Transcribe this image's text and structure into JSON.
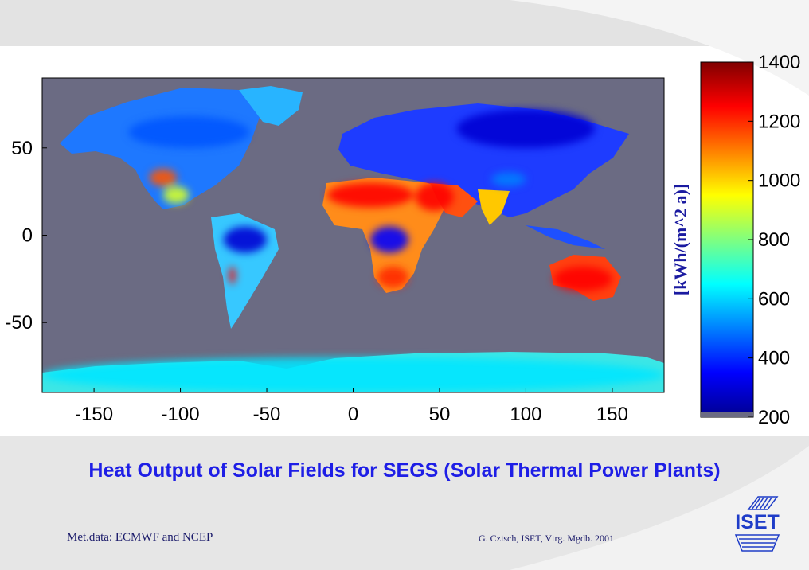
{
  "slide": {
    "title": "Heat Output of Solar Fields for SEGS (Solar Thermal Power Plants)",
    "footer_left": "Met.data: ECMWF and NCEP",
    "footer_right": "G. Czisch, ISET, Vtrg. Mgdb. 2001",
    "logo_text": "ISET"
  },
  "colors": {
    "title": "#1e1ee6",
    "ocean": "#6b6b83",
    "colorbar_label": "#1a1aa0"
  },
  "chart_data": {
    "type": "heatmap",
    "title": "",
    "xlabel": "",
    "ylabel": "",
    "xlim": [
      -180,
      180
    ],
    "ylim": [
      -90,
      90
    ],
    "xticks": [
      -150,
      -100,
      -50,
      0,
      50,
      100,
      150
    ],
    "yticks": [
      50,
      0,
      -50
    ],
    "colorbar": {
      "label": "[kWh/(m^2 a)]",
      "range": [
        200,
        1400
      ],
      "ticks": [
        200,
        400,
        600,
        800,
        1000,
        1200,
        1400
      ],
      "colormap": "jet",
      "nodata_color": "#6b6b83"
    },
    "regions": [
      {
        "name": "Sahara",
        "lon": [
          -15,
          35
        ],
        "lat": [
          16,
          30
        ],
        "value": 1250
      },
      {
        "name": "Arabian Peninsula",
        "lon": [
          36,
          58
        ],
        "lat": [
          14,
          30
        ],
        "value": 1250
      },
      {
        "name": "Southern Africa",
        "lon": [
          14,
          32
        ],
        "lat": [
          -30,
          -18
        ],
        "value": 1200
      },
      {
        "name": "Central Africa",
        "lon": [
          10,
          32
        ],
        "lat": [
          -10,
          5
        ],
        "value": 350
      },
      {
        "name": "Australia interior",
        "lon": [
          116,
          150
        ],
        "lat": [
          -32,
          -18
        ],
        "value": 1250
      },
      {
        "name": "US Southwest",
        "lon": [
          -118,
          -102
        ],
        "lat": [
          28,
          38
        ],
        "value": 1150
      },
      {
        "name": "Mexico",
        "lon": [
          -110,
          -95
        ],
        "lat": [
          18,
          28
        ],
        "value": 900
      },
      {
        "name": "Amazon",
        "lon": [
          -75,
          -50
        ],
        "lat": [
          -10,
          5
        ],
        "value": 300
      },
      {
        "name": "Atacama",
        "lon": [
          -72,
          -68
        ],
        "lat": [
          -28,
          -18
        ],
        "value": 1250
      },
      {
        "name": "Siberia",
        "lon": [
          60,
          140
        ],
        "lat": [
          50,
          72
        ],
        "value": 300
      },
      {
        "name": "Tibet",
        "lon": [
          80,
          100
        ],
        "lat": [
          28,
          36
        ],
        "value": 500
      },
      {
        "name": "Canada",
        "lon": [
          -130,
          -60
        ],
        "lat": [
          50,
          68
        ],
        "value": 450
      },
      {
        "name": "Antarctica",
        "lon": [
          -180,
          180
        ],
        "lat": [
          -90,
          -70
        ],
        "value": 620
      }
    ]
  }
}
